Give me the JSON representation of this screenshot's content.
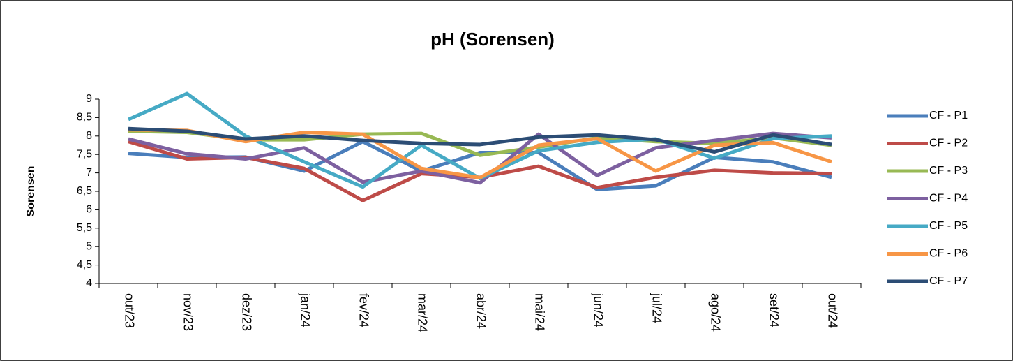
{
  "chart_data": {
    "type": "line",
    "title": "pH (Sorensen)",
    "y_label": "Sorensen",
    "categories": [
      "out/23",
      "nov/23",
      "dez/23",
      "jan/24",
      "fev/24",
      "mar/24",
      "abr/24",
      "mai/24",
      "jun/24",
      "jul/24",
      "ago/24",
      "set/24",
      "out/24"
    ],
    "ylim": [
      4,
      9
    ],
    "yticks": [
      4,
      {
        "value": 4.5,
        "label": "4,5"
      },
      5,
      {
        "value": 5.5,
        "label": "5,5"
      },
      6,
      {
        "value": 6.5,
        "label": "6,5"
      },
      7,
      {
        "value": 7.5,
        "label": "7,5"
      },
      8,
      {
        "value": 8.5,
        "label": "8,5"
      },
      9
    ],
    "legend": "right",
    "series": [
      {
        "name": "CF - P1",
        "color": "#4a7ebb",
        "values": [
          7.53,
          7.42,
          7.43,
          7.05,
          7.85,
          7.05,
          7.55,
          7.55,
          6.55,
          6.65,
          7.42,
          7.3,
          6.88
        ]
      },
      {
        "name": "CF - P2",
        "color": "#be4b48",
        "values": [
          7.85,
          7.38,
          7.42,
          7.12,
          6.25,
          6.98,
          6.88,
          7.18,
          6.6,
          6.88,
          7.07,
          7.0,
          6.98
        ]
      },
      {
        "name": "CF - P3",
        "color": "#98b954",
        "values": [
          8.13,
          8.1,
          7.9,
          7.9,
          8.05,
          8.07,
          7.48,
          7.7,
          7.95,
          7.85,
          7.8,
          7.95,
          7.75
        ]
      },
      {
        "name": "CF - P4",
        "color": "#7d60a0",
        "values": [
          7.92,
          7.52,
          7.38,
          7.68,
          6.75,
          7.05,
          6.73,
          8.05,
          6.93,
          7.68,
          7.88,
          8.07,
          7.95
        ]
      },
      {
        "name": "CF - P5",
        "color": "#46aac5",
        "values": [
          8.45,
          9.15,
          8.0,
          7.3,
          6.62,
          7.75,
          6.85,
          7.6,
          7.83,
          7.92,
          7.4,
          7.93,
          8.0
        ]
      },
      {
        "name": "CF - P6",
        "color": "#f79646",
        "values": [
          8.17,
          8.15,
          7.85,
          8.1,
          8.05,
          7.12,
          6.87,
          7.75,
          7.93,
          7.05,
          7.75,
          7.82,
          7.3
        ]
      },
      {
        "name": "CF - P7",
        "color": "#2c4d75",
        "values": [
          8.2,
          8.13,
          7.92,
          8.0,
          7.88,
          7.8,
          7.77,
          7.97,
          8.03,
          7.9,
          7.57,
          8.03,
          7.77
        ]
      }
    ]
  }
}
